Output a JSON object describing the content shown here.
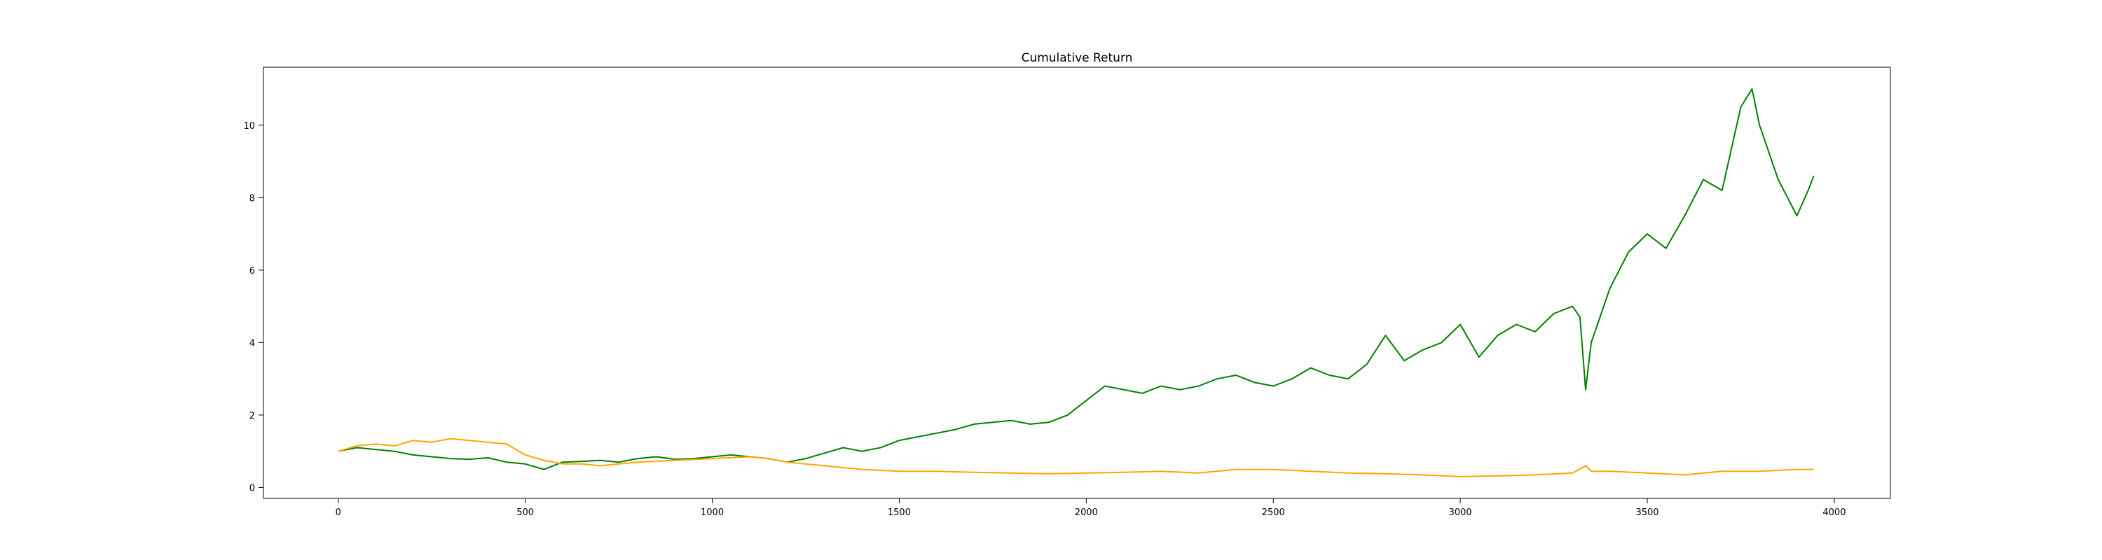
{
  "chart_data": {
    "type": "line",
    "title": "Cumulative Return",
    "xlabel": "",
    "ylabel": "",
    "xlim": [
      -200,
      4150
    ],
    "ylim": [
      -0.3,
      11.6
    ],
    "x_ticks": [
      0,
      500,
      1000,
      1500,
      2000,
      2500,
      3000,
      3500,
      4000
    ],
    "y_ticks": [
      0,
      2,
      4,
      6,
      8,
      10
    ],
    "grid": false,
    "legend": "none",
    "series": [
      {
        "color": "#008000",
        "x": [
          0,
          50,
          100,
          150,
          200,
          250,
          300,
          350,
          400,
          450,
          500,
          550,
          600,
          650,
          700,
          750,
          800,
          850,
          900,
          950,
          1000,
          1050,
          1100,
          1150,
          1200,
          1250,
          1300,
          1350,
          1400,
          1450,
          1500,
          1550,
          1600,
          1650,
          1700,
          1750,
          1800,
          1850,
          1900,
          1950,
          2000,
          2050,
          2100,
          2150,
          2200,
          2250,
          2300,
          2350,
          2400,
          2450,
          2500,
          2550,
          2600,
          2650,
          2700,
          2750,
          2800,
          2850,
          2900,
          2950,
          3000,
          3050,
          3100,
          3150,
          3200,
          3250,
          3300,
          3320,
          3335,
          3350,
          3400,
          3450,
          3500,
          3550,
          3600,
          3650,
          3700,
          3750,
          3780,
          3800,
          3850,
          3900,
          3930,
          3945
        ],
        "y": [
          1.0,
          1.1,
          1.05,
          1.0,
          0.9,
          0.85,
          0.8,
          0.78,
          0.82,
          0.7,
          0.65,
          0.5,
          0.7,
          0.72,
          0.75,
          0.7,
          0.8,
          0.85,
          0.78,
          0.8,
          0.85,
          0.9,
          0.85,
          0.8,
          0.7,
          0.8,
          0.95,
          1.1,
          1.0,
          1.1,
          1.3,
          1.4,
          1.5,
          1.6,
          1.75,
          1.8,
          1.85,
          1.75,
          1.8,
          2.0,
          2.4,
          2.8,
          2.7,
          2.6,
          2.8,
          2.7,
          2.8,
          3.0,
          3.1,
          2.9,
          2.8,
          3.0,
          3.3,
          3.1,
          3.0,
          3.4,
          4.2,
          3.5,
          3.8,
          4.0,
          4.5,
          3.6,
          4.2,
          4.5,
          4.3,
          4.8,
          5.0,
          4.7,
          2.7,
          4.0,
          5.5,
          6.5,
          7.0,
          6.6,
          7.5,
          8.5,
          8.2,
          10.5,
          11.0,
          10.0,
          8.5,
          7.5,
          8.2,
          8.6
        ]
      },
      {
        "color": "#ffa500",
        "x": [
          0,
          50,
          100,
          150,
          200,
          250,
          300,
          350,
          400,
          450,
          500,
          550,
          600,
          650,
          700,
          800,
          900,
          1000,
          1100,
          1150,
          1200,
          1300,
          1400,
          1500,
          1600,
          1700,
          1800,
          1900,
          2000,
          2100,
          2200,
          2300,
          2400,
          2500,
          2600,
          2700,
          2800,
          2900,
          3000,
          3100,
          3200,
          3300,
          3335,
          3350,
          3400,
          3500,
          3600,
          3700,
          3800,
          3900,
          3945
        ],
        "y": [
          1.0,
          1.15,
          1.2,
          1.15,
          1.3,
          1.25,
          1.35,
          1.3,
          1.25,
          1.2,
          0.9,
          0.75,
          0.65,
          0.65,
          0.6,
          0.7,
          0.75,
          0.8,
          0.85,
          0.8,
          0.7,
          0.6,
          0.5,
          0.45,
          0.45,
          0.42,
          0.4,
          0.38,
          0.4,
          0.42,
          0.45,
          0.4,
          0.5,
          0.5,
          0.45,
          0.4,
          0.38,
          0.35,
          0.3,
          0.32,
          0.35,
          0.4,
          0.6,
          0.45,
          0.45,
          0.4,
          0.35,
          0.45,
          0.45,
          0.5,
          0.5
        ]
      }
    ]
  }
}
